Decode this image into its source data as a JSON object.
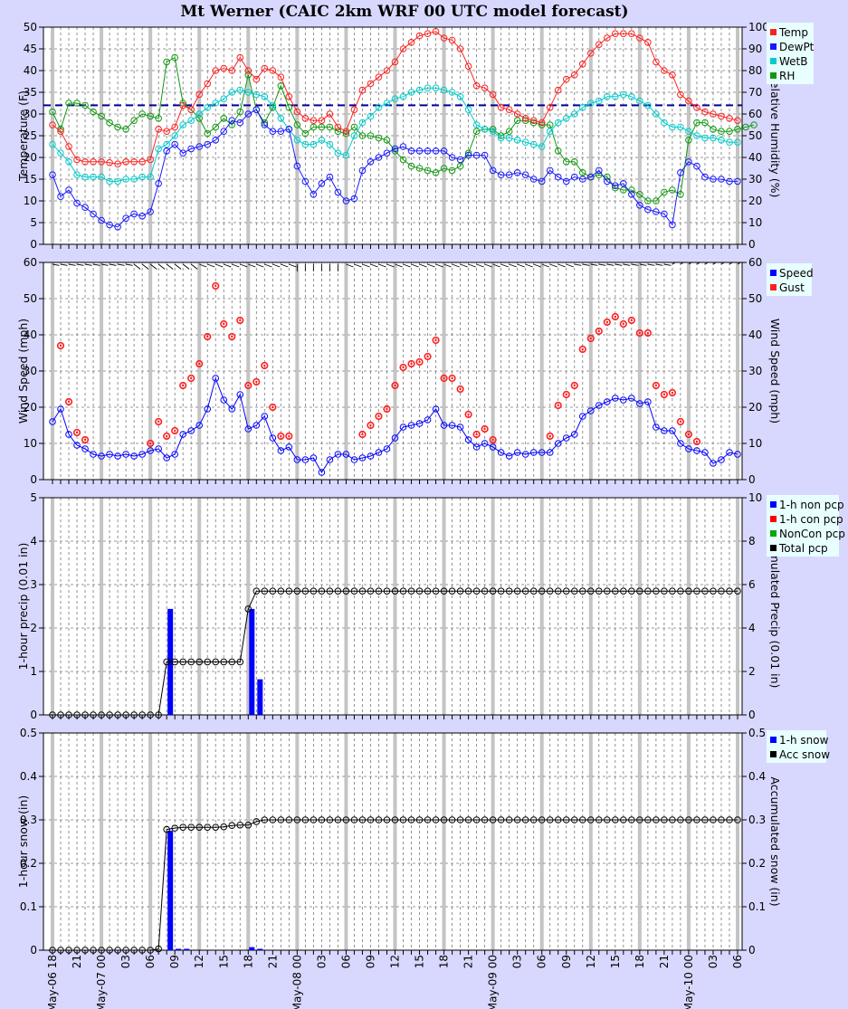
{
  "title": "Mt Werner (CAIC 2km WRF 00 UTC model forecast)",
  "colors": {
    "temp": "#ff2020",
    "dewpt": "#1a1aff",
    "wetb": "#00cccc",
    "rh": "#119911",
    "speed": "#0000ff",
    "gust": "#ff2020",
    "nonpcp": "#0000ff",
    "conpcp": "#ff0000",
    "noncon": "#00aa00",
    "total": "#000000",
    "snow": "#0000ff",
    "accsnow": "#000000",
    "freeze": "#000099"
  },
  "x_axis": {
    "start_hour": 18,
    "n_hours": 85,
    "hour_labels": [
      {
        "i": 0,
        "text": "May-06 18"
      },
      {
        "i": 3,
        "text": "21"
      },
      {
        "i": 6,
        "text": "May-07 00"
      },
      {
        "i": 9,
        "text": "03"
      },
      {
        "i": 12,
        "text": "06"
      },
      {
        "i": 15,
        "text": "09"
      },
      {
        "i": 18,
        "text": "12"
      },
      {
        "i": 21,
        "text": "15"
      },
      {
        "i": 24,
        "text": "18"
      },
      {
        "i": 27,
        "text": "21"
      },
      {
        "i": 30,
        "text": "May-08 00"
      },
      {
        "i": 33,
        "text": "03"
      },
      {
        "i": 36,
        "text": "06"
      },
      {
        "i": 39,
        "text": "09"
      },
      {
        "i": 42,
        "text": "12"
      },
      {
        "i": 45,
        "text": "15"
      },
      {
        "i": 48,
        "text": "18"
      },
      {
        "i": 51,
        "text": "21"
      },
      {
        "i": 54,
        "text": "May-09 00"
      },
      {
        "i": 57,
        "text": "03"
      },
      {
        "i": 60,
        "text": "06"
      },
      {
        "i": 63,
        "text": "09"
      },
      {
        "i": 66,
        "text": "12"
      },
      {
        "i": 69,
        "text": "15"
      },
      {
        "i": 72,
        "text": "18"
      },
      {
        "i": 75,
        "text": "21"
      },
      {
        "i": 78,
        "text": "May-10 00"
      },
      {
        "i": 81,
        "text": "03"
      },
      {
        "i": 84,
        "text": "06"
      }
    ]
  },
  "chart_data": [
    {
      "type": "line",
      "ylabel": "Temperature (F)",
      "y2label": "Relative Humidity (%)",
      "ylim": [
        0,
        50
      ],
      "y2lim": [
        0,
        100
      ],
      "yticks": [
        "0",
        "5",
        "10",
        "15",
        "20",
        "25",
        "30",
        "35",
        "40",
        "45",
        "50"
      ],
      "y2ticks": [
        "0",
        "10",
        "20",
        "30",
        "40",
        "50",
        "60",
        "70",
        "80",
        "90",
        "100"
      ],
      "reference_line": {
        "y": 32,
        "style": "dashed"
      },
      "legend": [
        "Temp",
        "DewPt",
        "WetB",
        "RH"
      ],
      "series": [
        {
          "name": "Temp",
          "axis": "left",
          "values": [
            27.5,
            26,
            22.5,
            19.5,
            19,
            19,
            19,
            18.8,
            18.5,
            19,
            19,
            19,
            19.5,
            26.5,
            26,
            27,
            32,
            31,
            34.5,
            37,
            40,
            40.5,
            40,
            43,
            40,
            38,
            40.5,
            40,
            38.5,
            34,
            30.5,
            29,
            28.5,
            28.5,
            30,
            27,
            26,
            31,
            35.5,
            37,
            38.5,
            40,
            42,
            45,
            46.5,
            48,
            48.5,
            49,
            47.5,
            47,
            45,
            41,
            36.5,
            36,
            34.5,
            31.5,
            31,
            30,
            29,
            28.5,
            28,
            31.5,
            35.5,
            38,
            39,
            41.5,
            44,
            46,
            47.5,
            48.5,
            48.5,
            48.5,
            47.5,
            46.5,
            42,
            40,
            39,
            34.5,
            33,
            31.5,
            30.5,
            30,
            29.5,
            29,
            28.5
          ]
        },
        {
          "name": "DewPt",
          "axis": "left",
          "values": [
            16,
            11,
            12.5,
            9.5,
            8.5,
            7,
            5.5,
            4.5,
            4,
            6,
            7,
            6.5,
            7.5,
            14,
            21.5,
            23,
            21,
            22,
            22.5,
            23,
            24,
            26,
            28.5,
            28,
            30,
            31,
            27.5,
            26,
            26,
            26.5,
            18,
            14.5,
            11.5,
            14,
            15.5,
            12,
            10,
            10.5,
            17,
            19,
            20,
            21,
            22,
            22.5,
            21.5,
            21.5,
            21.5,
            21.5,
            21.5,
            20,
            19.5,
            20.5,
            20.5,
            20.5,
            17,
            16,
            16,
            16.5,
            16,
            15,
            14.5,
            17,
            15.5,
            14.5,
            15.5,
            15,
            15.5,
            17,
            14.5,
            13.5,
            14,
            11.5,
            9,
            8,
            7.5,
            7,
            4.5,
            16.5,
            19,
            18,
            15.5,
            15,
            15,
            14.5,
            14.5
          ]
        },
        {
          "name": "WetB",
          "axis": "left",
          "values": [
            23,
            21,
            19,
            16,
            15.5,
            15.5,
            15.5,
            14.5,
            14.5,
            15,
            15,
            15.5,
            15.5,
            22,
            23,
            25,
            27.5,
            28.5,
            30,
            31.5,
            32.5,
            33.5,
            35,
            35.5,
            35,
            34.5,
            34,
            32,
            29,
            26.5,
            24,
            23,
            23,
            24,
            23,
            21,
            20.5,
            25,
            28,
            29.5,
            31.5,
            32.5,
            33.5,
            34,
            35,
            35.5,
            36,
            36,
            35.5,
            35,
            34,
            31,
            27.5,
            26.5,
            26,
            24.5,
            24.5,
            24,
            23.5,
            23,
            22.5,
            26,
            28,
            29,
            30,
            31.5,
            32.5,
            33,
            34,
            34,
            34.5,
            34,
            33,
            32,
            30,
            28,
            27,
            27,
            26,
            25,
            24.5,
            24.5,
            24,
            23.5,
            23.5
          ]
        },
        {
          "name": "RH",
          "axis": "right",
          "values": [
            61,
            53,
            65,
            65,
            64,
            61,
            59,
            56,
            54,
            53,
            57,
            60,
            59,
            58,
            84,
            86,
            65,
            62,
            58,
            51,
            54,
            58,
            55,
            61,
            78,
            62,
            56,
            63,
            73,
            63,
            55,
            51,
            54,
            54,
            54,
            52,
            51,
            54,
            50,
            50,
            49,
            48,
            43,
            39,
            36,
            35,
            34,
            33,
            35,
            34,
            36,
            42,
            52,
            53,
            53,
            50,
            52,
            57,
            57,
            56,
            55,
            55,
            43,
            38,
            38,
            33,
            31,
            32,
            31,
            26,
            25,
            25,
            23,
            20,
            20,
            24,
            25,
            23,
            48,
            56,
            56,
            53,
            52,
            52,
            53,
            54,
            55
          ]
        }
      ]
    },
    {
      "type": "scatter",
      "ylabel": "Wind Speed (mph)",
      "y2label": "Wind Speed (mph)",
      "ylim": [
        0,
        60
      ],
      "y2lim": [
        0,
        60
      ],
      "yticks": [
        "0",
        "10",
        "20",
        "30",
        "40",
        "50",
        "60"
      ],
      "y2ticks": [
        "0",
        "10",
        "20",
        "30",
        "40",
        "50",
        "60"
      ],
      "legend": [
        "Speed",
        "Gust"
      ],
      "series": [
        {
          "name": "Speed",
          "values": [
            16,
            19.5,
            12.5,
            9.5,
            8.5,
            7,
            6.5,
            7,
            6.5,
            7,
            6.5,
            7,
            8,
            8.5,
            6,
            7,
            12.5,
            13.5,
            15,
            19.5,
            28,
            22,
            19.5,
            23.5,
            14,
            15,
            17.5,
            11.5,
            8,
            9,
            5.5,
            5.5,
            6,
            2,
            5.5,
            7,
            7,
            5.5,
            6,
            6.5,
            7.5,
            8.5,
            11.5,
            14.5,
            15,
            15.5,
            16.5,
            19.5,
            15,
            15,
            14.5,
            11,
            9,
            10,
            9,
            7.5,
            6.5,
            7.5,
            7,
            7.5,
            7.5,
            7.5,
            10,
            11.5,
            12.5,
            17.5,
            19,
            20.5,
            21.5,
            22.5,
            22,
            22.5,
            21,
            21.5,
            14.5,
            13.5,
            13.5,
            10,
            8.5,
            8,
            7.5,
            4.5,
            5.5,
            7.5,
            7
          ]
        },
        {
          "name": "Gust",
          "values": [
            null,
            37,
            21.5,
            13,
            11,
            null,
            null,
            null,
            null,
            null,
            null,
            null,
            10,
            16,
            12,
            13.5,
            26,
            28,
            32,
            39.5,
            53.5,
            43,
            39.5,
            44,
            26,
            27,
            31.5,
            20,
            12,
            12,
            null,
            null,
            null,
            null,
            null,
            null,
            null,
            null,
            12.5,
            15,
            17.5,
            19.5,
            26,
            31,
            32,
            32.5,
            34,
            38.5,
            28,
            28,
            25,
            18,
            12.5,
            14,
            11,
            null,
            null,
            null,
            null,
            null,
            null,
            12,
            20.5,
            23.5,
            26,
            36,
            39,
            41,
            43.5,
            45,
            43,
            44,
            40.5,
            40.5,
            26,
            23.5,
            24,
            16,
            12.5,
            10.5,
            null,
            null,
            null,
            null,
            null
          ]
        }
      ]
    },
    {
      "type": "bar",
      "ylabel": "1-hour precip (0.01 in)",
      "y2label": "Accumulated Precip (0.01 in)",
      "ylim": [
        0,
        5
      ],
      "y2lim": [
        0,
        10
      ],
      "yticks": [
        "0",
        "1",
        "2",
        "3",
        "4",
        "5"
      ],
      "y2ticks": [
        "0",
        "2",
        "4",
        "6",
        "8",
        "10"
      ],
      "legend": [
        "1-h non pcp",
        "1-h con pcp",
        "NonCon pcp",
        "Total pcp"
      ],
      "bars": {
        "name": "1-h non pcp",
        "points": [
          {
            "i": 14,
            "v": 2.44
          },
          {
            "i": 24,
            "v": 2.44
          },
          {
            "i": 25,
            "v": 0.82
          }
        ]
      },
      "accumulated": {
        "name": "Total pcp",
        "axis": "right",
        "steps": [
          {
            "from": 0,
            "v": 0
          },
          {
            "from": 14,
            "v": 2.44
          },
          {
            "from": 24,
            "v": 4.88
          },
          {
            "from": 25,
            "v": 5.7
          }
        ]
      }
    },
    {
      "type": "bar",
      "ylabel": "1-hour snow (in)",
      "y2label": "Accumulated snow (in)",
      "ylim": [
        0,
        0.5
      ],
      "y2lim": [
        0,
        0.5
      ],
      "yticks": [
        "0",
        "0.1",
        "0.2",
        "0.3",
        "0.4",
        "0.5"
      ],
      "y2ticks": [
        "0",
        "0.1",
        "0.2",
        "0.3",
        "0.4",
        "0.5"
      ],
      "legend": [
        "1-h snow",
        "Acc snow"
      ],
      "bars": {
        "name": "1-h snow",
        "points": [
          {
            "i": 14,
            "v": 0.275
          },
          {
            "i": 15,
            "v": 0.003
          },
          {
            "i": 16,
            "v": 0.002
          },
          {
            "i": 24,
            "v": 0.007
          },
          {
            "i": 25,
            "v": 0.003
          }
        ]
      },
      "accumulated": {
        "name": "Acc snow",
        "axis": "right",
        "values": [
          0,
          0,
          0,
          0,
          0,
          0,
          0,
          0,
          0,
          0,
          0,
          0,
          0,
          0.003,
          0.278,
          0.281,
          0.283,
          0.283,
          0.283,
          0.283,
          0.283,
          0.284,
          0.287,
          0.288,
          0.288,
          0.296,
          0.3
        ]
      }
    }
  ]
}
